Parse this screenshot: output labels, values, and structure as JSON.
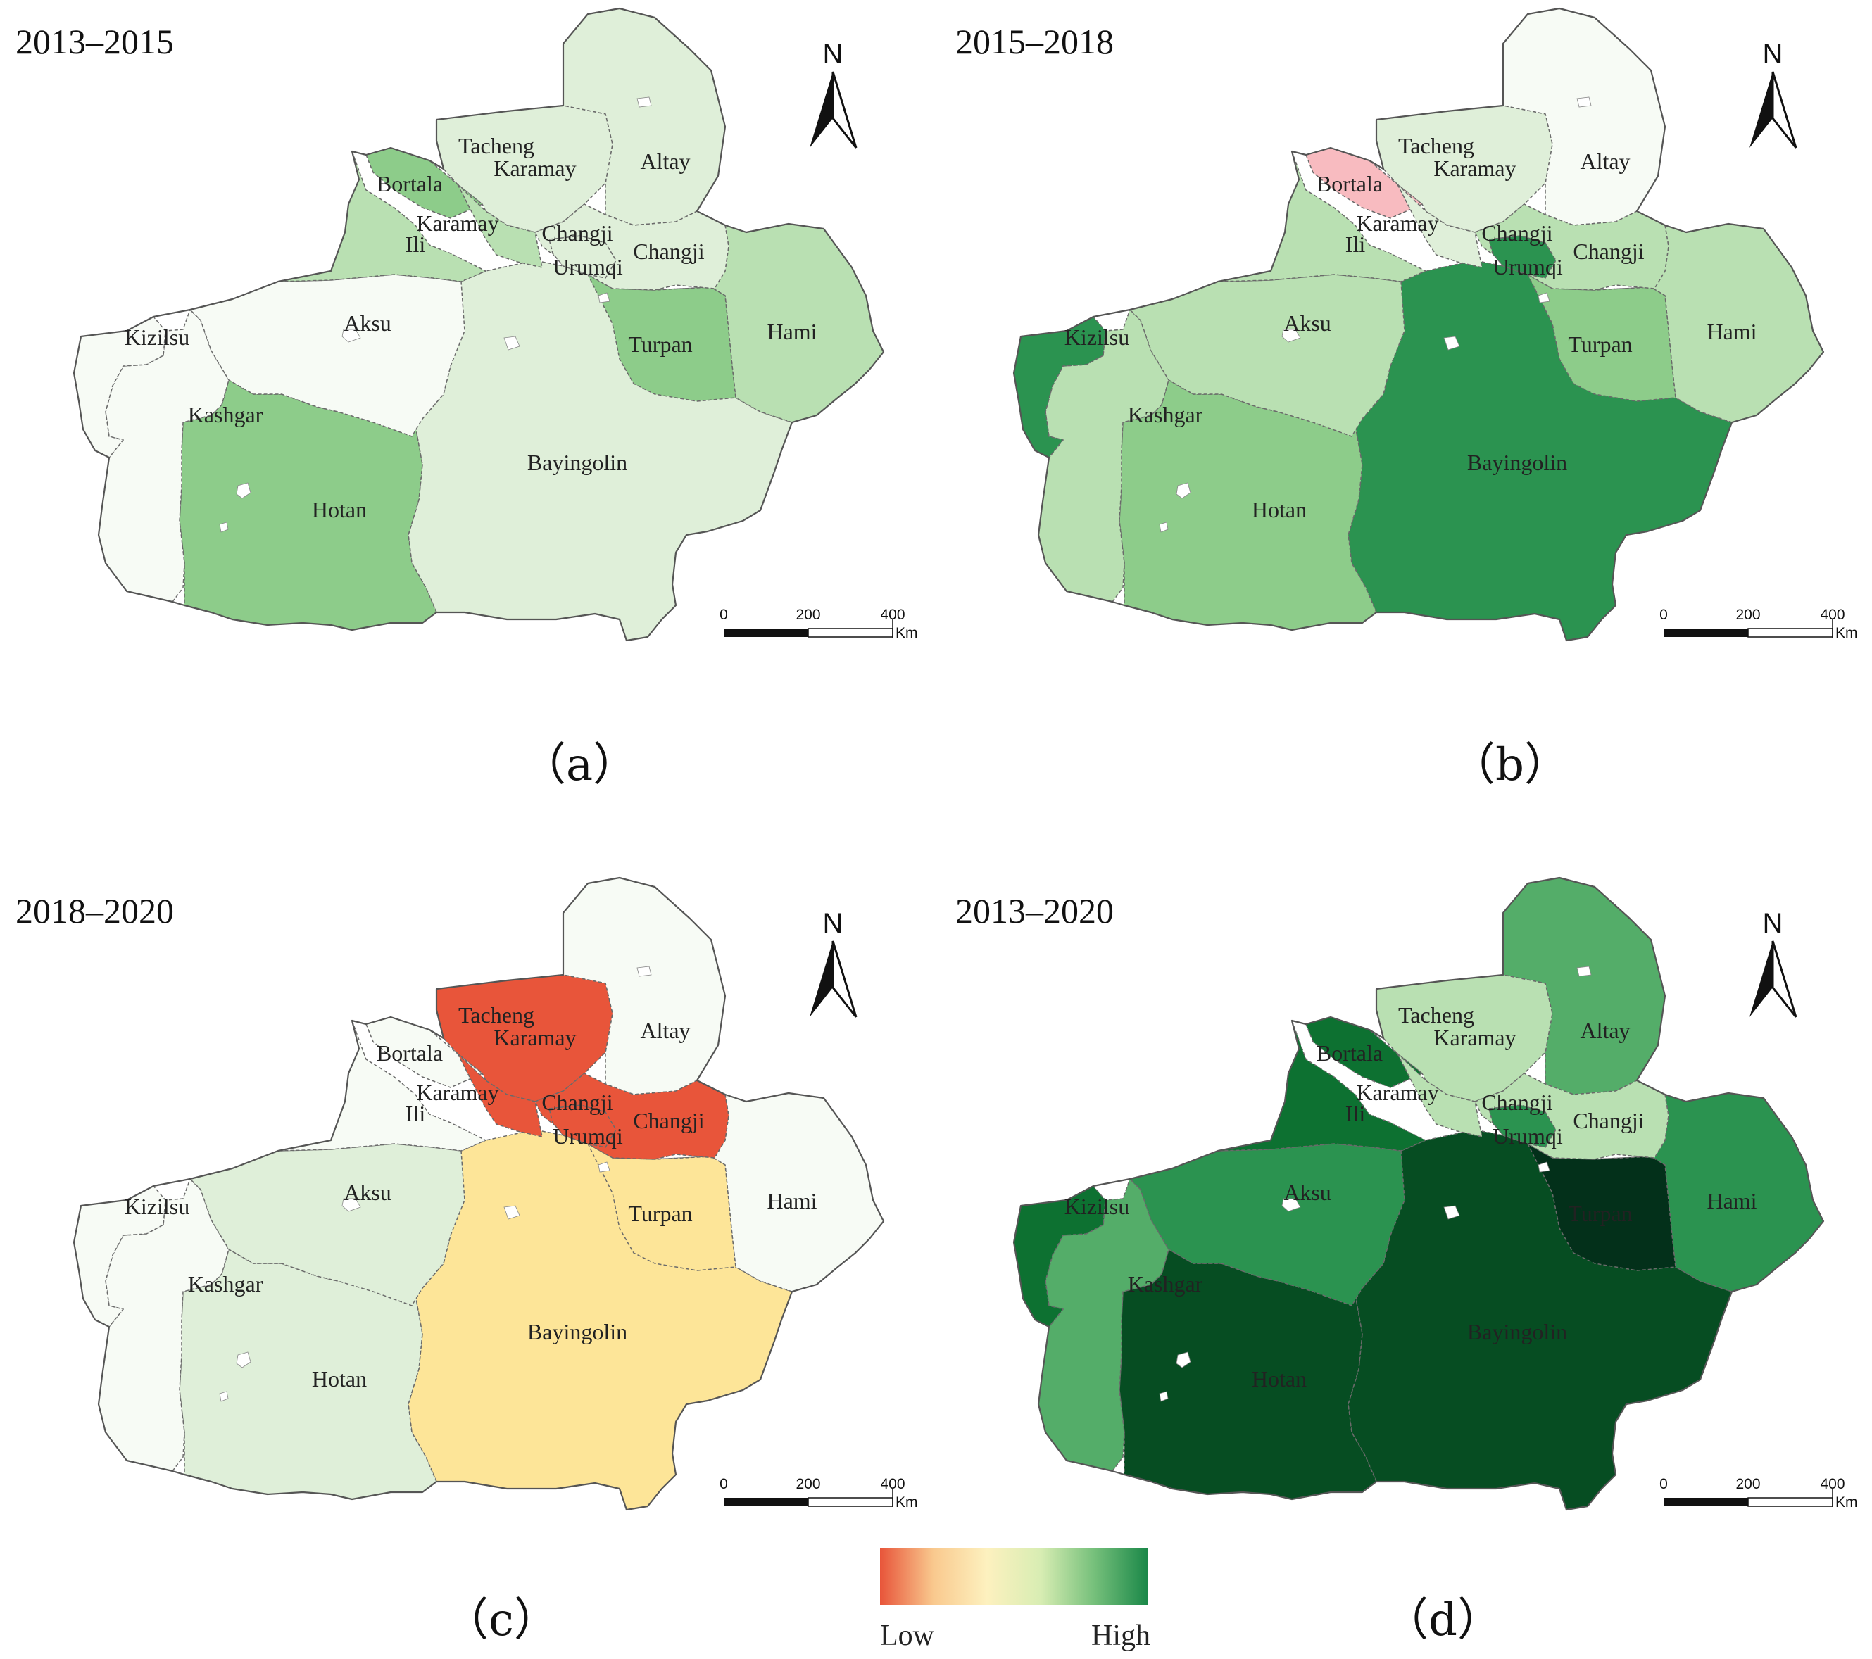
{
  "colors": {
    "c0": "#e8553a",
    "c1": "#f8bbc0",
    "c2": "#fde598",
    "c3": "#f7fbf5",
    "c4": "#dfefd9",
    "c5": "#b9e0b2",
    "c6": "#8dcc8a",
    "c7": "#54ad69",
    "c8": "#2b9350",
    "c9": "#0d7131",
    "c10": "#064d22",
    "c11": "#03301a",
    "border": "#6a6a6a",
    "outline": "#555555"
  },
  "legend": {
    "low_label": "Low",
    "high_label": "High",
    "ramp": [
      "#e8553a",
      "#f9c98e",
      "#fdf1bf",
      "#d8edb3",
      "#76c07b",
      "#1b8849"
    ]
  },
  "scale_bar": {
    "ticks": [
      "0",
      "200",
      "400"
    ],
    "unit": "Km"
  },
  "north_label": "N",
  "panels": [
    {
      "period": "2013–2015",
      "caption": "（a）",
      "fills": {
        "kizilsu": "c3",
        "kashgar": "c3",
        "hotan": "c6",
        "aksu": "c3",
        "bayingolin": "c4",
        "ili": "c5",
        "bortala": "c6",
        "tacheng": "c4",
        "karamay": "c5",
        "altay": "c4",
        "changji": "c4",
        "urumqi": "c4",
        "turpan": "c6",
        "hami": "c5"
      }
    },
    {
      "period": "2015–2018",
      "caption": "（b）",
      "fills": {
        "kizilsu": "c8",
        "kashgar": "c5",
        "hotan": "c6",
        "aksu": "c5",
        "bayingolin": "c8",
        "ili": "c5",
        "bortala": "c1",
        "tacheng": "c4",
        "karamay": "c4",
        "altay": "c3",
        "changji": "c5",
        "urumqi": "c8",
        "turpan": "c6",
        "hami": "c5"
      }
    },
    {
      "period": "2018–2020",
      "caption": "（c）",
      "fills": {
        "kizilsu": "c3",
        "kashgar": "c3",
        "hotan": "c4",
        "aksu": "c4",
        "bayingolin": "c2",
        "ili": "c3",
        "bortala": "c3",
        "tacheng": "c0",
        "karamay": "c0",
        "altay": "c3",
        "changji": "c0",
        "urumqi": "c0",
        "turpan": "c2",
        "hami": "c3"
      }
    },
    {
      "period": "2013–2020",
      "caption": "（d）",
      "fills": {
        "kizilsu": "c9",
        "kashgar": "c7",
        "hotan": "c10",
        "aksu": "c8",
        "bayingolin": "c10",
        "ili": "c9",
        "bortala": "c9",
        "tacheng": "c5",
        "karamay": "c5",
        "altay": "c7",
        "changji": "c5",
        "urumqi": "c8",
        "turpan": "c11",
        "hami": "c8"
      }
    }
  ],
  "labels": {
    "tacheng": "Tacheng",
    "karamay_north": "Karamay",
    "karamay_south": "Karamay",
    "bortala": "Bortala",
    "altay": "Altay",
    "ili": "Ili",
    "changji_west": "Changji",
    "changji_east": "Changji",
    "urumqi": "Urumqi",
    "aksu": "Aksu",
    "kizilsu": "Kizilsu",
    "kashgar": "Kashgar",
    "turpan": "Turpan",
    "hami": "Hami",
    "bayingolin": "Bayingolin",
    "hotan": "Hotan"
  }
}
